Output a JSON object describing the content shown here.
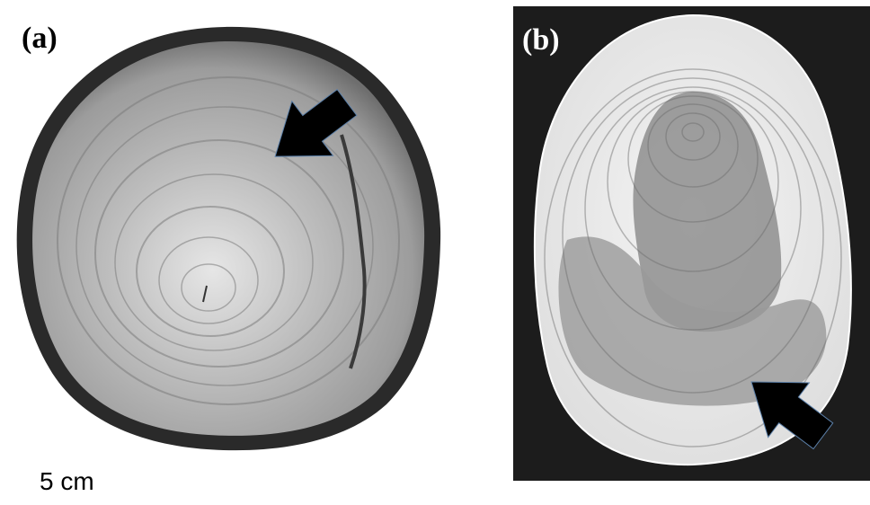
{
  "panels": [
    {
      "id": "a",
      "label": "(a)"
    },
    {
      "id": "b",
      "label": "(b)"
    }
  ],
  "scale_label": "5 cm",
  "colors": {
    "background": "#ffffff",
    "panel_b_background": "#1c1c1c",
    "bark": "#2a2a2a",
    "wood_a": "#b8b8b8",
    "wood_b_light": "#ececec",
    "wood_b_dark": "#8e8e8e",
    "arrow": "#000000"
  }
}
